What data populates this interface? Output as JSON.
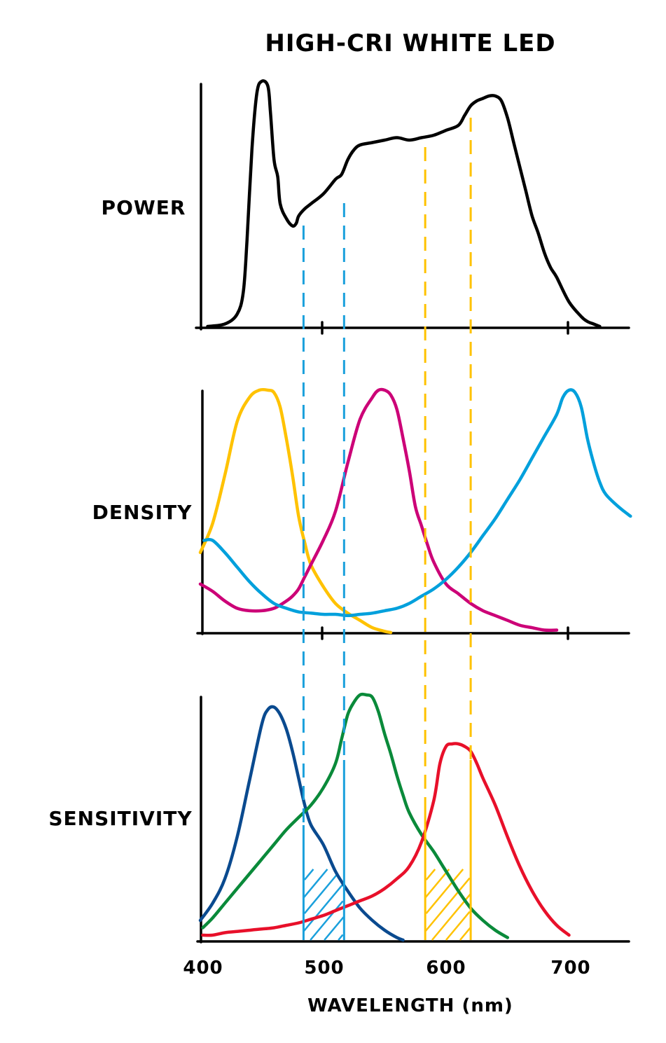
{
  "title": "HIGH-CRI WHITE LED",
  "xlabel": "WAVELENGTH (nm)",
  "x_ticks": [
    "400",
    "500",
    "600",
    "700"
  ],
  "colors": {
    "power": "#000000",
    "density_yellow": "#ffc200",
    "density_magenta": "#cc0077",
    "density_cyan": "#00a0dc",
    "sens_blue": "#0a4a8f",
    "sens_green": "#0a8a3a",
    "sens_red": "#e8102a",
    "guide_blue": "#1aa0dc",
    "guide_yellow": "#ffc200"
  },
  "chart_data": [
    {
      "type": "line",
      "title": "",
      "ylabel": "POWER",
      "xlabel": "",
      "xlim": [
        400,
        750
      ],
      "ylim": [
        0,
        1
      ],
      "series": [
        {
          "color": "#000000",
          "x": [
            406,
            420,
            430,
            435,
            438,
            442,
            446,
            450,
            455,
            457,
            460,
            463,
            465,
            470,
            475,
            478,
            480,
            485,
            490,
            500,
            510,
            515,
            520,
            525,
            530,
            540,
            550,
            560,
            570,
            580,
            590,
            600,
            610,
            615,
            620,
            625,
            630,
            635,
            640,
            645,
            650,
            655,
            660,
            665,
            670,
            675,
            680,
            685,
            690,
            700,
            710,
            715,
            720,
            725
          ],
          "y": [
            0.0,
            0.01,
            0.05,
            0.14,
            0.35,
            0.72,
            0.95,
            1.0,
            0.98,
            0.88,
            0.68,
            0.61,
            0.5,
            0.44,
            0.41,
            0.42,
            0.45,
            0.48,
            0.5,
            0.54,
            0.6,
            0.62,
            0.68,
            0.72,
            0.74,
            0.75,
            0.76,
            0.77,
            0.76,
            0.77,
            0.78,
            0.8,
            0.82,
            0.86,
            0.9,
            0.92,
            0.93,
            0.94,
            0.94,
            0.92,
            0.85,
            0.75,
            0.65,
            0.55,
            0.45,
            0.38,
            0.3,
            0.24,
            0.2,
            0.1,
            0.04,
            0.02,
            0.01,
            0.0
          ]
        }
      ]
    },
    {
      "type": "line",
      "title": "",
      "ylabel": "DENSITY",
      "xlabel": "",
      "xlim": [
        400,
        750
      ],
      "ylim": [
        0,
        1
      ],
      "series": [
        {
          "color": "#ffc200",
          "x": [
            400,
            410,
            420,
            430,
            440,
            448,
            455,
            460,
            465,
            470,
            475,
            480,
            485,
            490,
            500,
            510,
            520,
            530,
            540,
            550,
            555
          ],
          "y": [
            0.33,
            0.45,
            0.65,
            0.87,
            0.97,
            1.0,
            1.0,
            0.99,
            0.93,
            0.8,
            0.65,
            0.48,
            0.37,
            0.28,
            0.19,
            0.12,
            0.08,
            0.05,
            0.02,
            0.005,
            0.0
          ]
        },
        {
          "color": "#cc0077",
          "x": [
            400,
            410,
            420,
            430,
            440,
            450,
            460,
            470,
            475,
            480,
            485,
            490,
            500,
            510,
            520,
            530,
            540,
            545,
            550,
            555,
            560,
            565,
            570,
            575,
            580,
            585,
            590,
            600,
            610,
            620,
            630,
            640,
            650,
            660,
            670,
            680,
            690
          ],
          "y": [
            0.2,
            0.17,
            0.13,
            0.1,
            0.09,
            0.09,
            0.1,
            0.13,
            0.15,
            0.18,
            0.23,
            0.28,
            0.38,
            0.5,
            0.7,
            0.88,
            0.97,
            1.0,
            1.0,
            0.98,
            0.92,
            0.8,
            0.67,
            0.52,
            0.44,
            0.36,
            0.29,
            0.2,
            0.16,
            0.12,
            0.09,
            0.07,
            0.05,
            0.03,
            0.02,
            0.01,
            0.01
          ]
        },
        {
          "color": "#00a0dc",
          "x": [
            403,
            410,
            420,
            430,
            440,
            450,
            460,
            470,
            480,
            490,
            500,
            510,
            520,
            530,
            540,
            550,
            560,
            570,
            580,
            590,
            600,
            610,
            620,
            630,
            640,
            650,
            660,
            670,
            680,
            690,
            695,
            700,
            705,
            710,
            715,
            720,
            725,
            730,
            740,
            750
          ],
          "y": [
            0.38,
            0.38,
            0.33,
            0.27,
            0.21,
            0.16,
            0.12,
            0.1,
            0.085,
            0.08,
            0.075,
            0.075,
            0.07,
            0.075,
            0.08,
            0.09,
            0.1,
            0.12,
            0.15,
            0.18,
            0.22,
            0.27,
            0.33,
            0.4,
            0.47,
            0.55,
            0.63,
            0.72,
            0.81,
            0.9,
            0.97,
            1.0,
            0.99,
            0.93,
            0.8,
            0.7,
            0.62,
            0.57,
            0.52,
            0.48
          ]
        }
      ]
    },
    {
      "type": "line",
      "title": "",
      "ylabel": "SENSITIVITY",
      "xlabel": "WAVELENGTH (nm)",
      "xlim": [
        400,
        750
      ],
      "x_ticks": [
        400,
        500,
        600,
        700
      ],
      "ylim": [
        0,
        1
      ],
      "series": [
        {
          "color": "#0a4a8f",
          "x": [
            400,
            410,
            420,
            430,
            440,
            450,
            455,
            460,
            465,
            470,
            475,
            480,
            485,
            490,
            500,
            510,
            520,
            530,
            540,
            550,
            560,
            565
          ],
          "y": [
            0.08,
            0.15,
            0.25,
            0.42,
            0.65,
            0.88,
            0.94,
            0.95,
            0.92,
            0.86,
            0.77,
            0.66,
            0.55,
            0.47,
            0.39,
            0.28,
            0.2,
            0.13,
            0.08,
            0.04,
            0.01,
            0.0
          ]
        },
        {
          "color": "#0a8a3a",
          "x": [
            402,
            410,
            420,
            430,
            440,
            450,
            460,
            470,
            480,
            490,
            500,
            510,
            515,
            520,
            525,
            530,
            535,
            540,
            545,
            550,
            555,
            560,
            565,
            570,
            580,
            590,
            600,
            610,
            620,
            630,
            640,
            650
          ],
          "y": [
            0.05,
            0.09,
            0.15,
            0.21,
            0.27,
            0.33,
            0.39,
            0.45,
            0.5,
            0.55,
            0.62,
            0.72,
            0.82,
            0.92,
            0.97,
            1.0,
            1.0,
            0.99,
            0.93,
            0.84,
            0.76,
            0.67,
            0.59,
            0.52,
            0.43,
            0.36,
            0.28,
            0.2,
            0.13,
            0.08,
            0.04,
            0.01
          ]
        },
        {
          "color": "#e8102a",
          "x": [
            402,
            410,
            420,
            430,
            440,
            450,
            460,
            470,
            480,
            490,
            500,
            510,
            520,
            530,
            540,
            550,
            560,
            570,
            580,
            590,
            595,
            600,
            605,
            610,
            615,
            620,
            625,
            630,
            640,
            650,
            660,
            670,
            680,
            690,
            700
          ],
          "y": [
            0.02,
            0.02,
            0.03,
            0.035,
            0.04,
            0.045,
            0.05,
            0.06,
            0.07,
            0.085,
            0.1,
            0.12,
            0.14,
            0.16,
            0.18,
            0.21,
            0.25,
            0.3,
            0.4,
            0.57,
            0.72,
            0.79,
            0.8,
            0.8,
            0.79,
            0.77,
            0.72,
            0.66,
            0.55,
            0.42,
            0.3,
            0.2,
            0.12,
            0.06,
            0.02
          ]
        }
      ]
    }
  ]
}
